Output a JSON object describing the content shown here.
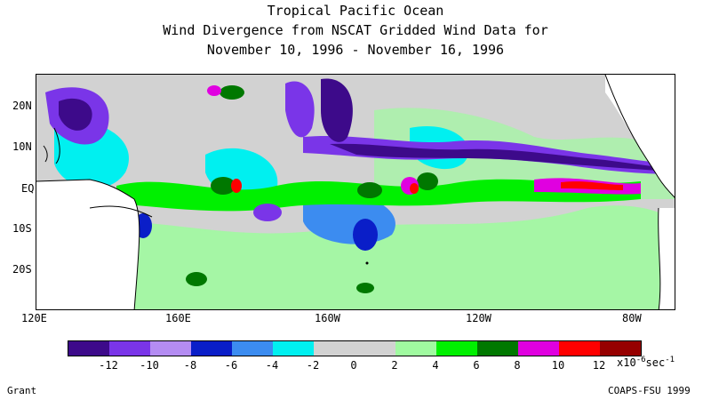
{
  "title": {
    "line1": "Tropical Pacific Ocean",
    "line2": "Wind Divergence from NSCAT Gridded Wind Data for",
    "line3": "November 10, 1996 - November 16, 1996"
  },
  "map": {
    "lat_labels": [
      "20N",
      "10N",
      "EQ",
      "10S",
      "20S"
    ],
    "lon_labels": [
      "120E",
      "160E",
      "160W",
      "120W",
      "80W"
    ]
  },
  "colorbar": {
    "colors": [
      "#3d0a8a",
      "#7a35e8",
      "#b48cf2",
      "#0a1ec8",
      "#3c8cf0",
      "#00f0f0",
      "#d2d2d2",
      "#d2d2d2",
      "#a0faa0",
      "#00f000",
      "#007800",
      "#e000e0",
      "#ff0000",
      "#960000"
    ],
    "labels": [
      "-12",
      "-10",
      "-8",
      "-6",
      "-4",
      "-2",
      "0",
      "2",
      "4",
      "6",
      "8",
      "10",
      "12"
    ],
    "units": "x10",
    "units_exp": "-6",
    "units_tail": "sec",
    "units_tail_exp": "-1"
  },
  "footer": {
    "left": "Grant",
    "right": "COAPS-FSU 1999"
  }
}
